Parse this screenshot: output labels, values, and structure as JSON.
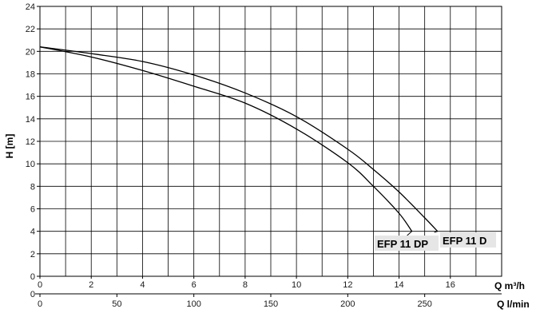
{
  "chart_data": {
    "type": "line",
    "title": "",
    "ylabel": "H [m]",
    "xlabel": "Q m³/h",
    "xlabel2": "Q l/min",
    "xlim": [
      0,
      18
    ],
    "ylim": [
      0,
      24
    ],
    "x_ticks": [
      0,
      2,
      4,
      6,
      8,
      10,
      12,
      14,
      16
    ],
    "y_ticks": [
      0,
      2,
      4,
      6,
      8,
      10,
      12,
      14,
      16,
      18,
      20,
      22,
      24
    ],
    "x2_ticks": [
      0,
      50,
      100,
      150,
      200,
      250
    ],
    "grid": true,
    "series": [
      {
        "name": "EFP 11 D",
        "x": [
          0,
          2,
          4,
          6,
          8,
          10,
          12,
          13,
          14,
          15,
          15.5
        ],
        "y": [
          20.4,
          19.8,
          19.1,
          17.9,
          16.3,
          14.2,
          11.3,
          9.5,
          7.5,
          5.2,
          4.0
        ]
      },
      {
        "name": "EFP 11 DP",
        "x": [
          0,
          2,
          4,
          6,
          8,
          10,
          12,
          13,
          14,
          14.5
        ],
        "y": [
          20.4,
          19.5,
          18.3,
          16.9,
          15.4,
          13.1,
          10.1,
          8.0,
          5.6,
          4.0
        ]
      }
    ]
  }
}
